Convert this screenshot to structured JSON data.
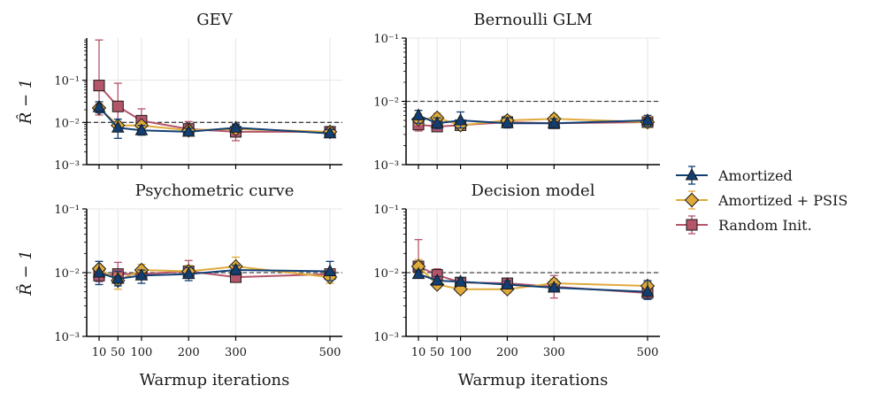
{
  "colors": {
    "amortized": "#123f73",
    "psis": "#e0aa3b",
    "random": "#b5556a",
    "grid": "#e6e6e6",
    "ref_line": "#444444"
  },
  "shared": {
    "xlabel": "Warmup iterations",
    "ylabel": "R̂ − 1",
    "x_ticks": [
      10,
      50,
      100,
      200,
      300,
      500
    ],
    "x_tick_labels": [
      "10",
      "50",
      "100",
      "200",
      "300",
      "500"
    ],
    "y_ticks": [
      0.001,
      0.01,
      0.1
    ],
    "y_tick_labels": [
      "10⁻³",
      "10⁻²",
      "10⁻¹"
    ],
    "reference_line": 0.01
  },
  "legend": [
    {
      "name": "Amortized",
      "marker": "triangle"
    },
    {
      "name": "Amortized + PSIS",
      "marker": "diamond"
    },
    {
      "name": "Random Init.",
      "marker": "square"
    }
  ],
  "chart_data": [
    {
      "type": "line",
      "title": "GEV",
      "xlabel": "",
      "ylabel": "R̂ − 1",
      "y_scale": "log",
      "ylim": [
        0.001,
        1
      ],
      "x": [
        10,
        50,
        100,
        200,
        300,
        500
      ],
      "series": [
        {
          "name": "Amortized",
          "values": [
            0.023,
            0.0075,
            0.0065,
            0.006,
            0.0075,
            0.0055
          ],
          "err_low": [
            0.017,
            0.0042,
            0.005,
            0.005,
            0.006,
            0.0045
          ],
          "err_high": [
            0.031,
            0.012,
            0.0085,
            0.0072,
            0.0092,
            0.0068
          ]
        },
        {
          "name": "Amortized + PSIS",
          "values": [
            0.022,
            0.0085,
            0.0085,
            0.0065,
            0.007,
            0.006
          ],
          "err_low": [
            0.017,
            0.007,
            0.0075,
            0.0055,
            0.006,
            0.005
          ],
          "err_high": [
            0.028,
            0.01,
            0.0097,
            0.0078,
            0.0082,
            0.007
          ]
        },
        {
          "name": "Random Init.",
          "values": [
            0.075,
            0.024,
            0.011,
            0.007,
            0.006,
            0.006
          ],
          "err_low": [
            0.015,
            0.0085,
            0.0065,
            0.005,
            0.0037,
            0.0047
          ],
          "err_high": [
            0.9,
            0.085,
            0.021,
            0.0105,
            0.0088,
            0.0077
          ]
        }
      ]
    },
    {
      "type": "line",
      "title": "Bernoulli GLM",
      "xlabel": "",
      "ylabel": "",
      "y_scale": "log",
      "ylim": [
        0.001,
        0.1
      ],
      "x": [
        10,
        50,
        100,
        200,
        300,
        500
      ],
      "series": [
        {
          "name": "Amortized",
          "values": [
            0.006,
            0.0045,
            0.005,
            0.0045,
            0.0045,
            0.005
          ],
          "err_low": [
            0.0045,
            0.0037,
            0.0038,
            0.0038,
            0.0038,
            0.004
          ],
          "err_high": [
            0.0072,
            0.0055,
            0.0068,
            0.0055,
            0.0053,
            0.006
          ]
        },
        {
          "name": "Amortized + PSIS",
          "values": [
            0.0052,
            0.0055,
            0.0042,
            0.005,
            0.0053,
            0.0047
          ],
          "err_low": [
            0.0043,
            0.0046,
            0.0036,
            0.0042,
            0.0045,
            0.0038
          ],
          "err_high": [
            0.0063,
            0.0065,
            0.005,
            0.0059,
            0.0062,
            0.0058
          ]
        },
        {
          "name": "Random Init.",
          "values": [
            0.0043,
            0.004,
            0.0042,
            0.0047,
            0.0045,
            0.0047
          ],
          "err_low": [
            0.0034,
            0.0034,
            0.0036,
            0.004,
            0.0038,
            0.0039
          ],
          "err_high": [
            0.0055,
            0.0047,
            0.0049,
            0.0055,
            0.0053,
            0.0055
          ]
        }
      ]
    },
    {
      "type": "line",
      "title": "Psychometric curve",
      "xlabel": "Warmup iterations",
      "ylabel": "R̂ − 1",
      "y_scale": "log",
      "ylim": [
        0.001,
        0.1
      ],
      "x": [
        10,
        50,
        100,
        200,
        300,
        500
      ],
      "series": [
        {
          "name": "Amortized",
          "values": [
            0.01,
            0.008,
            0.009,
            0.0095,
            0.011,
            0.0105
          ],
          "err_low": [
            0.0065,
            0.0062,
            0.0068,
            0.0075,
            0.0092,
            0.0075
          ],
          "err_high": [
            0.015,
            0.0105,
            0.011,
            0.012,
            0.013,
            0.015
          ]
        },
        {
          "name": "Amortized + PSIS",
          "values": [
            0.0115,
            0.0075,
            0.011,
            0.0105,
            0.0125,
            0.0085
          ],
          "err_low": [
            0.0088,
            0.0055,
            0.009,
            0.0088,
            0.0105,
            0.0068
          ],
          "err_high": [
            0.015,
            0.0095,
            0.0135,
            0.013,
            0.0175,
            0.011
          ]
        },
        {
          "name": "Random Init.",
          "values": [
            0.009,
            0.0095,
            0.0095,
            0.0105,
            0.0085,
            0.0095
          ],
          "err_low": [
            0.0072,
            0.0075,
            0.0078,
            0.0082,
            0.0072,
            0.0082
          ],
          "err_high": [
            0.0115,
            0.0145,
            0.0118,
            0.0155,
            0.0098,
            0.011
          ]
        }
      ]
    },
    {
      "type": "line",
      "title": "Decision model",
      "xlabel": "Warmup iterations",
      "ylabel": "",
      "y_scale": "log",
      "ylim": [
        0.001,
        0.1
      ],
      "x": [
        10,
        50,
        100,
        200,
        300,
        500
      ],
      "series": [
        {
          "name": "Amortized",
          "values": [
            0.0095,
            0.0075,
            0.0072,
            0.0065,
            0.0058,
            0.005
          ],
          "err_low": [
            0.0082,
            0.0064,
            0.0063,
            0.0057,
            0.0051,
            0.0038
          ],
          "err_high": [
            0.011,
            0.0087,
            0.0082,
            0.0074,
            0.0066,
            0.0075
          ]
        },
        {
          "name": "Amortized + PSIS",
          "values": [
            0.0125,
            0.0065,
            0.0055,
            0.0055,
            0.0068,
            0.0062
          ],
          "err_low": [
            0.0098,
            0.0057,
            0.0048,
            0.0048,
            0.0057,
            0.0052
          ],
          "err_high": [
            0.016,
            0.0075,
            0.0062,
            0.0062,
            0.008,
            0.0072
          ]
        },
        {
          "name": "Random Init.",
          "values": [
            0.0125,
            0.0092,
            0.007,
            0.0068,
            0.006,
            0.0048
          ],
          "err_low": [
            0.0085,
            0.0072,
            0.006,
            0.0056,
            0.004,
            0.004
          ],
          "err_high": [
            0.033,
            0.0115,
            0.008,
            0.0082,
            0.009,
            0.0057
          ]
        }
      ]
    }
  ]
}
